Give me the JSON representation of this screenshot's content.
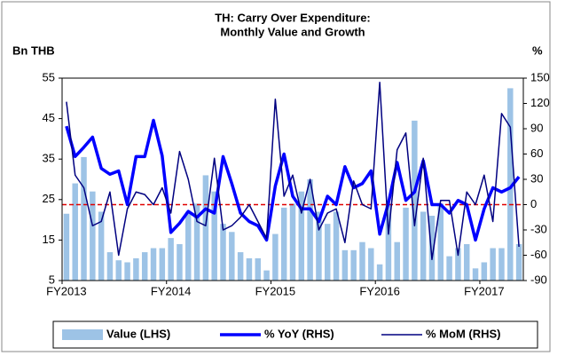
{
  "chart_data": {
    "type": "bar",
    "title": [
      "TH: Carry Over Expenditure:",
      "Monthly Value and Growth"
    ],
    "ylabel": "Bn THB",
    "y2label": "%",
    "categories": [
      "FY2013",
      null,
      null,
      null,
      null,
      null,
      null,
      null,
      null,
      null,
      null,
      null,
      "FY2014",
      null,
      null,
      null,
      null,
      null,
      null,
      null,
      null,
      null,
      null,
      null,
      "FY2015",
      null,
      null,
      null,
      null,
      null,
      null,
      null,
      null,
      null,
      null,
      null,
      "FY2016",
      null,
      null,
      null,
      null,
      null,
      null,
      null,
      null,
      null,
      null,
      null,
      "FY2017",
      null,
      null,
      null,
      null
    ],
    "ylim": [
      5,
      55
    ],
    "yticks": [
      5,
      15,
      25,
      35,
      45,
      55
    ],
    "y2lim": [
      -90,
      150
    ],
    "y2ticks": [
      -90,
      -60,
      -30,
      0,
      30,
      60,
      90,
      120,
      150
    ],
    "reference_line": {
      "value": 0,
      "axis": "y2",
      "color": "#e00000"
    },
    "legend": "bottom",
    "series": [
      {
        "name": "Value (LHS)",
        "type": "bar",
        "color": "#9dc3e6",
        "values": [
          21.5,
          29,
          35.5,
          27,
          22,
          12,
          10,
          9.5,
          10.5,
          12,
          13,
          13,
          15.5,
          14,
          22,
          24,
          31,
          27,
          19,
          17,
          12,
          10.5,
          10.5,
          7.5,
          16.5,
          23,
          24,
          27,
          30,
          22,
          19,
          22,
          12.5,
          12.5,
          14.5,
          13,
          9,
          24,
          14.5,
          23,
          44.5,
          22,
          21,
          24,
          11,
          13,
          14,
          8,
          9.5,
          13,
          13,
          52.5,
          14
        ]
      },
      {
        "name": "% YoY (RHS)",
        "type": "line",
        "axis": "y2",
        "color": "#0000ff",
        "width": 3.5,
        "values": [
          93,
          57,
          68,
          80,
          43,
          36,
          40,
          0,
          57,
          57,
          100,
          58,
          -33,
          -22,
          -8,
          -15,
          -5,
          -10,
          57,
          25,
          -10,
          -20,
          -25,
          -42,
          22,
          60,
          10,
          -5,
          -5,
          -20,
          10,
          0,
          45,
          20,
          25,
          40,
          -35,
          2,
          50,
          5,
          15,
          52,
          0,
          0,
          -10,
          5,
          0,
          -42,
          -5,
          20,
          15,
          20,
          33
        ]
      },
      {
        "name": "% MoM (RHS)",
        "type": "line",
        "axis": "y2",
        "color": "#000080",
        "width": 1.5,
        "values": [
          122,
          35,
          20,
          -25,
          -20,
          15,
          -60,
          -5,
          15,
          12,
          0,
          20,
          -10,
          63,
          30,
          -20,
          -25,
          55,
          -30,
          -25,
          -15,
          0,
          -20,
          -40,
          125,
          10,
          35,
          -10,
          30,
          -30,
          -10,
          -5,
          -45,
          28,
          0,
          -5,
          145,
          -35,
          65,
          85,
          -25,
          55,
          -65,
          5,
          5,
          -60,
          15,
          0,
          35,
          -20,
          108,
          92,
          -50
        ]
      }
    ]
  }
}
